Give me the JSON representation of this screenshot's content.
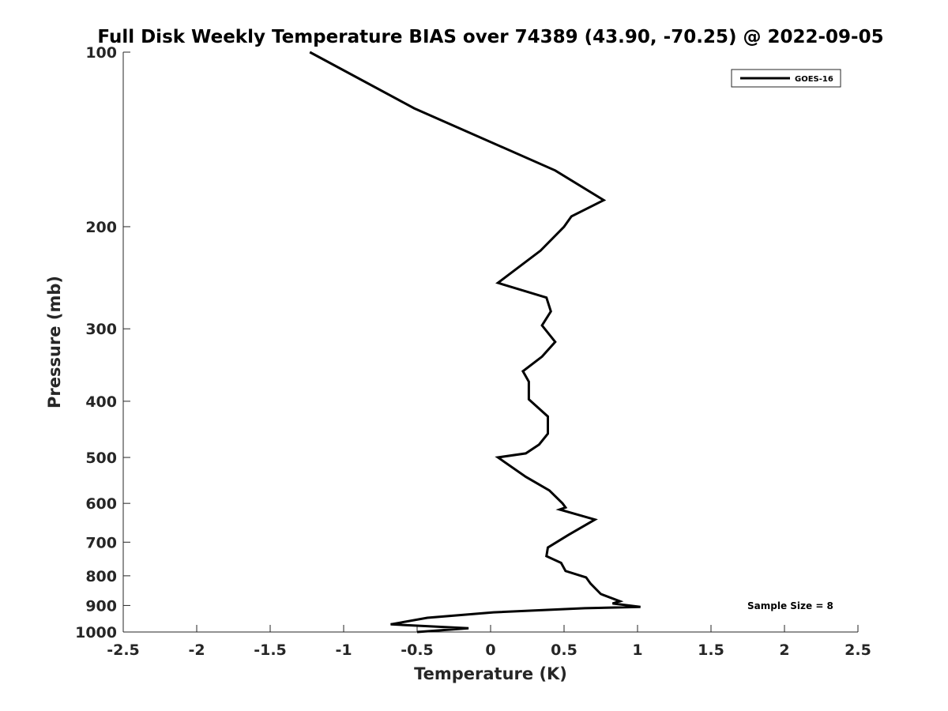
{
  "chart_data": {
    "type": "line",
    "title": "Full Disk Weekly Temperature BIAS over 74389 (43.90, -70.25) @ 2022-09-05",
    "xlabel": "Temperature (K)",
    "ylabel": "Pressure (mb)",
    "xlim": [
      -2.5,
      2.5
    ],
    "ylim": [
      1000,
      100
    ],
    "y_scale": "log",
    "y_reversed": true,
    "grid": false,
    "x_ticks": [
      "-2.5",
      "-2",
      "-1.5",
      "-1",
      "-0.5",
      "0",
      "0.5",
      "1",
      "1.5",
      "2",
      "2.5"
    ],
    "y_ticks": [
      "100",
      "200",
      "300",
      "400",
      "500",
      "600",
      "700",
      "800",
      "900",
      "1000"
    ],
    "legend_position": "top-right",
    "annotation": "Sample Size = 8",
    "line_color": "#000000",
    "series": [
      {
        "name": "GOES-16",
        "x": [
          -1.23,
          -0.52,
          0.44,
          0.77,
          0.55,
          0.5,
          0.34,
          0.05,
          0.38,
          0.41,
          0.35,
          0.44,
          0.35,
          0.22,
          0.26,
          0.26,
          0.39,
          0.39,
          0.33,
          0.24,
          0.05,
          0.24,
          0.4,
          0.49,
          0.51,
          0.47,
          0.71,
          0.53,
          0.39,
          0.38,
          0.48,
          0.51,
          0.65,
          0.68,
          0.75,
          0.88,
          0.83,
          1.02,
          0.64,
          0.02,
          -0.43,
          -0.68,
          -0.15,
          -0.5
        ],
        "y": [
          100,
          125,
          160,
          180,
          192,
          200,
          220,
          250,
          265,
          280,
          296,
          316,
          335,
          355,
          370,
          397,
          425,
          455,
          475,
          492,
          500,
          540,
          570,
          600,
          610,
          615,
          640,
          680,
          715,
          740,
          760,
          785,
          805,
          825,
          860,
          885,
          893,
          905,
          910,
          925,
          945,
          970,
          985,
          1000
        ]
      }
    ]
  }
}
